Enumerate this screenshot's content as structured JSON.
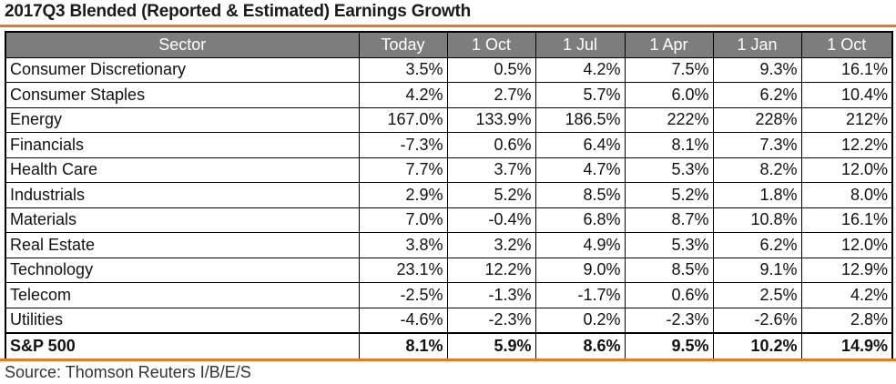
{
  "title": "2017Q3 Blended (Reported & Estimated) Earnings Growth",
  "source": "Source: Thomson Reuters I/B/E/S",
  "colors": {
    "accent": "#E87722",
    "header_bg": "#7d7d7d"
  },
  "chart_data": {
    "type": "table",
    "title": "2017Q3 Blended (Reported & Estimated) Earnings Growth",
    "columns": [
      "Sector",
      "Today",
      "1 Oct",
      "1 Jul",
      "1 Apr",
      "1 Jan",
      "1 Oct"
    ],
    "rows": [
      [
        "Consumer Discretionary",
        "3.5%",
        "0.5%",
        "4.2%",
        "7.5%",
        "9.3%",
        "16.1%"
      ],
      [
        "Consumer Staples",
        "4.2%",
        "2.7%",
        "5.7%",
        "6.0%",
        "6.2%",
        "10.4%"
      ],
      [
        "Energy",
        "167.0%",
        "133.9%",
        "186.5%",
        "222%",
        "228%",
        "212%"
      ],
      [
        "Financials",
        "-7.3%",
        "0.6%",
        "6.4%",
        "8.1%",
        "7.3%",
        "12.2%"
      ],
      [
        "Health Care",
        "7.7%",
        "3.7%",
        "4.7%",
        "5.3%",
        "8.2%",
        "12.0%"
      ],
      [
        "Industrials",
        "2.9%",
        "5.2%",
        "8.5%",
        "5.2%",
        "1.8%",
        "8.0%"
      ],
      [
        "Materials",
        "7.0%",
        "-0.4%",
        "6.8%",
        "8.7%",
        "10.8%",
        "16.1%"
      ],
      [
        "Real Estate",
        "3.8%",
        "3.2%",
        "4.9%",
        "5.3%",
        "6.2%",
        "12.0%"
      ],
      [
        "Technology",
        "23.1%",
        "12.2%",
        "9.0%",
        "8.5%",
        "9.1%",
        "12.9%"
      ],
      [
        "Telecom",
        "-2.5%",
        "-1.3%",
        "-1.7%",
        "0.6%",
        "2.5%",
        "4.2%"
      ],
      [
        "Utilities",
        "-4.6%",
        "-2.3%",
        "0.2%",
        "-2.3%",
        "-2.6%",
        "2.8%"
      ]
    ],
    "total_row": [
      "S&P 500",
      "8.1%",
      "5.9%",
      "8.6%",
      "9.5%",
      "10.2%",
      "14.9%"
    ]
  }
}
